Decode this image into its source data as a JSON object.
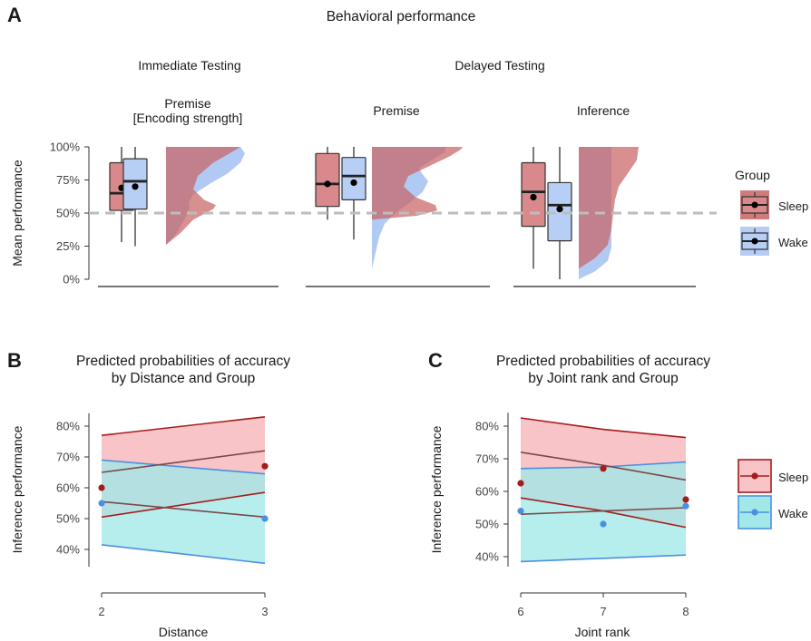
{
  "panel_letters": {
    "a": "A",
    "b": "B",
    "c": "C"
  },
  "colors": {
    "sleep": "#c86464",
    "sleep_line": "#a61c1c",
    "wake": "#a8c4f2",
    "wake_line": "#4a90e2",
    "sleep_band": "#f8c4c8",
    "wake_band": "#a2e8e8",
    "box_sleep": "#d9898b",
    "box_wake": "#b7cff5",
    "ref_line": "#bdbdbd"
  },
  "chart_data": [
    {
      "type": "box",
      "title": "Behavioral performance",
      "ylabel": "Mean performance",
      "ylim": [
        0,
        100
      ],
      "ytick_labels": [
        "0%",
        "25%",
        "50%",
        "75%",
        "100%"
      ],
      "ytick_values": [
        0,
        25,
        50,
        75,
        100
      ],
      "reference_line": 50,
      "section_titles": [
        "Immediate Testing",
        "Delayed Testing"
      ],
      "facets": [
        {
          "title_line1": "Premise",
          "title_line2": "[Encoding strength]",
          "sleep": {
            "min": 28,
            "q1": 52,
            "median": 65,
            "q3": 88,
            "max": 100,
            "mean": 69
          },
          "wake": {
            "min": 25,
            "q1": 53,
            "median": 74,
            "q3": 91,
            "max": 100,
            "mean": 70
          },
          "sleep_density": [
            [
              26,
              0
            ],
            [
              35,
              0.16
            ],
            [
              45,
              0.3
            ],
            [
              53,
              0.52
            ],
            [
              56,
              0.55
            ],
            [
              60,
              0.42
            ],
            [
              68,
              0.3
            ],
            [
              78,
              0.35
            ],
            [
              88,
              0.52
            ],
            [
              95,
              0.7
            ],
            [
              100,
              0.82
            ]
          ],
          "wake_density": [
            [
              26,
              0
            ],
            [
              35,
              0.12
            ],
            [
              45,
              0.2
            ],
            [
              54,
              0.26
            ],
            [
              58,
              0.25
            ],
            [
              64,
              0.3
            ],
            [
              72,
              0.48
            ],
            [
              80,
              0.68
            ],
            [
              88,
              0.82
            ],
            [
              95,
              0.87
            ],
            [
              100,
              0.82
            ]
          ]
        },
        {
          "title_line1": "Premise",
          "title_line2": "",
          "sleep": {
            "min": 45,
            "q1": 55,
            "median": 72,
            "q3": 95,
            "max": 100,
            "mean": 72
          },
          "wake": {
            "min": 30,
            "q1": 60,
            "median": 78,
            "q3": 92,
            "max": 100,
            "mean": 73
          },
          "sleep_density": [
            [
              45,
              0
            ],
            [
              48,
              0.5
            ],
            [
              52,
              0.72
            ],
            [
              56,
              0.7
            ],
            [
              62,
              0.48
            ],
            [
              70,
              0.35
            ],
            [
              78,
              0.4
            ],
            [
              86,
              0.65
            ],
            [
              93,
              0.86
            ],
            [
              98,
              0.98
            ],
            [
              100,
              1.0
            ]
          ],
          "wake_density": [
            [
              8,
              0
            ],
            [
              20,
              0.04
            ],
            [
              32,
              0.08
            ],
            [
              42,
              0.14
            ],
            [
              50,
              0.26
            ],
            [
              58,
              0.42
            ],
            [
              66,
              0.56
            ],
            [
              74,
              0.62
            ],
            [
              80,
              0.55
            ],
            [
              84,
              0.52
            ],
            [
              90,
              0.66
            ],
            [
              96,
              0.8
            ],
            [
              100,
              0.82
            ]
          ]
        },
        {
          "title_line1": "Inference",
          "title_line2": "",
          "sleep": {
            "min": 8,
            "q1": 40,
            "median": 66,
            "q3": 88,
            "max": 100,
            "mean": 62
          },
          "wake": {
            "min": 0,
            "q1": 29,
            "median": 56,
            "q3": 73,
            "max": 100,
            "mean": 53
          },
          "sleep_density": [
            [
              8,
              0
            ],
            [
              16,
              0.18
            ],
            [
              26,
              0.32
            ],
            [
              38,
              0.36
            ],
            [
              50,
              0.38
            ],
            [
              60,
              0.4
            ],
            [
              70,
              0.44
            ],
            [
              80,
              0.54
            ],
            [
              90,
              0.64
            ],
            [
              100,
              0.66
            ]
          ],
          "wake_density": [
            [
              0,
              0
            ],
            [
              6,
              0.18
            ],
            [
              14,
              0.32
            ],
            [
              24,
              0.36
            ],
            [
              35,
              0.36
            ],
            [
              48,
              0.36
            ],
            [
              58,
              0.36
            ],
            [
              66,
              0.36
            ],
            [
              74,
              0.36
            ],
            [
              82,
              0.36
            ],
            [
              90,
              0.36
            ],
            [
              100,
              0.36
            ]
          ]
        }
      ],
      "legend": {
        "title": "Group",
        "items": [
          "Sleep",
          "Wake"
        ],
        "position": "right"
      }
    },
    {
      "type": "line",
      "title_line1": "Predicted probabilities of accuracy",
      "title_line2": "by Distance and Group",
      "xlabel": "Distance",
      "ylabel": "Inference performance",
      "x": [
        2,
        3
      ],
      "xlim": [
        2,
        3
      ],
      "ylim": [
        35,
        83
      ],
      "ytick_labels": [
        "40%",
        "50%",
        "60%",
        "70%",
        "80%"
      ],
      "ytick_values": [
        40,
        50,
        60,
        70,
        80
      ],
      "series": [
        {
          "name": "Sleep",
          "fit": [
            65,
            72
          ],
          "lower": [
            50.5,
            58.5
          ],
          "upper": [
            77,
            83
          ],
          "observed": [
            60,
            67
          ]
        },
        {
          "name": "Wake",
          "fit": [
            55.5,
            50.5
          ],
          "lower": [
            41.5,
            35.5
          ],
          "upper": [
            69,
            64.5
          ],
          "observed": [
            55,
            50
          ]
        }
      ]
    },
    {
      "type": "line",
      "title_line1": "Predicted probabilities of accuracy",
      "title_line2": "by Joint rank and Group",
      "xlabel": "Joint rank",
      "ylabel": "Inference performance",
      "x": [
        6,
        7,
        8
      ],
      "xlim": [
        6,
        8
      ],
      "ylim": [
        37.5,
        83
      ],
      "ytick_labels": [
        "40%",
        "50%",
        "60%",
        "70%",
        "80%"
      ],
      "ytick_values": [
        40,
        50,
        60,
        70,
        80
      ],
      "series": [
        {
          "name": "Sleep",
          "fit": [
            72,
            68,
            63.5
          ],
          "lower": [
            58,
            54,
            49
          ],
          "upper": [
            82.5,
            79,
            76.5
          ],
          "observed": [
            62.5,
            67,
            57.5
          ]
        },
        {
          "name": "Wake",
          "fit": [
            53,
            54,
            55
          ],
          "lower": [
            38.5,
            39.5,
            40.5
          ],
          "upper": [
            67,
            67.5,
            69
          ],
          "observed": [
            54,
            50,
            55.5
          ]
        }
      ],
      "legend": {
        "items": [
          "Sleep",
          "Wake"
        ],
        "position": "right"
      }
    }
  ]
}
